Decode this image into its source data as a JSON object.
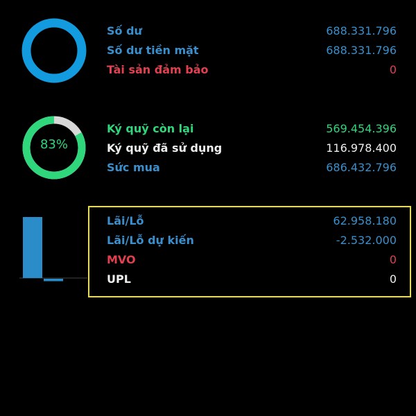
{
  "colors": {
    "blue": "#3a8fcc",
    "green": "#2fd67c",
    "red": "#e0404f",
    "ring_blue": "#139be0",
    "highlight": "#f1e21c"
  },
  "balance": {
    "rows": [
      {
        "label": "Số dư",
        "value": "688.331.796"
      },
      {
        "label": "Số dư tiền mặt",
        "value": "688.331.796"
      },
      {
        "label": "Tài sản đảm bảo",
        "value": "0"
      }
    ]
  },
  "margin": {
    "percent_label": "83%",
    "percent": 83,
    "rows": [
      {
        "label": "Ký quỹ còn lại",
        "value": "569.454.396"
      },
      {
        "label": "Ký quỹ đã sử dụng",
        "value": "116.978.400"
      },
      {
        "label": "Sức mua",
        "value": "686.432.796"
      }
    ]
  },
  "pnl": {
    "bars": [
      62958180,
      -2532000
    ],
    "rows": [
      {
        "label": "Lãi/Lỗ",
        "value": "62.958.180"
      },
      {
        "label": "Lãi/Lỗ dự kiến",
        "value": "-2.532.000"
      },
      {
        "label": "MVO",
        "value": "0"
      },
      {
        "label": "UPL",
        "value": "0"
      }
    ]
  }
}
